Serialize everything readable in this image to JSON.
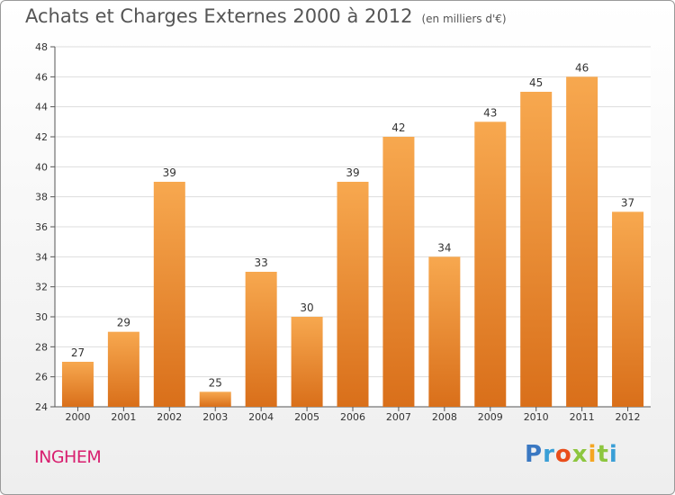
{
  "title": "Achats et Charges Externes 2000 à 2012",
  "unit_label": "(en milliers d'€)",
  "commune": "INGHEM",
  "logo": {
    "letters": [
      "P",
      "r",
      "o",
      "x",
      "i",
      "t",
      "i"
    ],
    "colors": [
      "#3a78c2",
      "#3a9fd6",
      "#e94e1b",
      "#8dc63f",
      "#f5a623",
      "#8dc63f",
      "#3a9fd6"
    ]
  },
  "colors": {
    "bar_top": "#f7a84f",
    "bar_bottom": "#d96f1a",
    "commune": "#d81f6f"
  },
  "chart_data": {
    "type": "bar",
    "categories": [
      "2000",
      "2001",
      "2002",
      "2003",
      "2004",
      "2005",
      "2006",
      "2007",
      "2008",
      "2009",
      "2010",
      "2011",
      "2012"
    ],
    "values": [
      27,
      29,
      39,
      25,
      33,
      30,
      39,
      42,
      34,
      43,
      45,
      46,
      37
    ],
    "ylim": [
      24,
      48
    ],
    "yticks": [
      24,
      26,
      28,
      30,
      32,
      34,
      36,
      38,
      40,
      42,
      44,
      46,
      48
    ],
    "grid": true
  }
}
